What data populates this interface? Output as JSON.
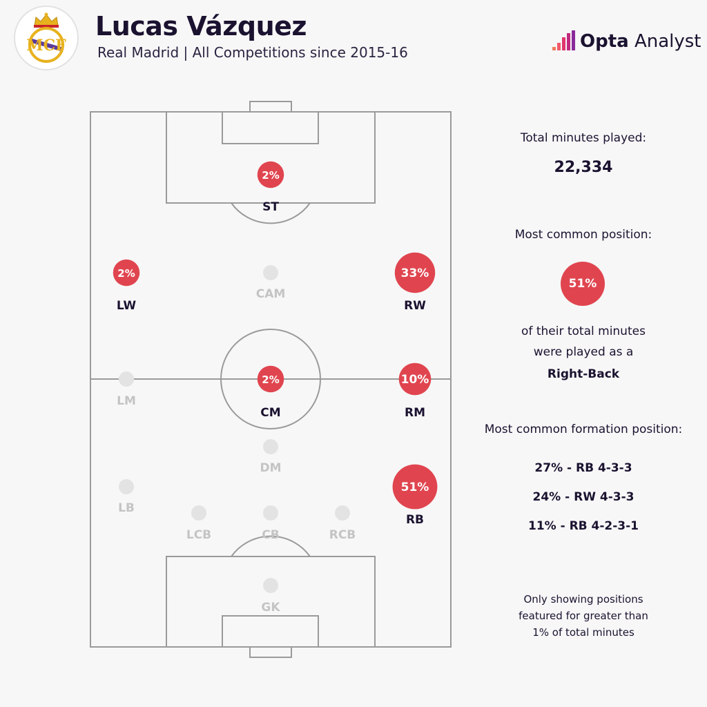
{
  "header": {
    "title": "Lucas Vázquez",
    "subtitle": "Real Madrid | All Competitions since 2015-16",
    "brand_bold": "Opta",
    "brand_light": " Analyst"
  },
  "positions": [
    {
      "id": "st",
      "label": "ST",
      "pct": "2%",
      "value": 2,
      "active": true
    },
    {
      "id": "lw",
      "label": "LW",
      "pct": "2%",
      "value": 2,
      "active": true
    },
    {
      "id": "cam",
      "label": "CAM",
      "pct": "",
      "value": 0,
      "active": false
    },
    {
      "id": "rw",
      "label": "RW",
      "pct": "33%",
      "value": 33,
      "active": true
    },
    {
      "id": "lm",
      "label": "LM",
      "pct": "",
      "value": 0,
      "active": false
    },
    {
      "id": "cm",
      "label": "CM",
      "pct": "2%",
      "value": 2,
      "active": true
    },
    {
      "id": "rm",
      "label": "RM",
      "pct": "10%",
      "value": 10,
      "active": true
    },
    {
      "id": "dm",
      "label": "DM",
      "pct": "",
      "value": 0,
      "active": false
    },
    {
      "id": "lb",
      "label": "LB",
      "pct": "",
      "value": 0,
      "active": false
    },
    {
      "id": "rb",
      "label": "RB",
      "pct": "51%",
      "value": 51,
      "active": true
    },
    {
      "id": "lcb",
      "label": "LCB",
      "pct": "",
      "value": 0,
      "active": false
    },
    {
      "id": "cb",
      "label": "CB",
      "pct": "",
      "value": 0,
      "active": false
    },
    {
      "id": "rcb",
      "label": "RCB",
      "pct": "",
      "value": 0,
      "active": false
    },
    {
      "id": "gk",
      "label": "GK",
      "pct": "",
      "value": 0,
      "active": false
    }
  ],
  "panel": {
    "minutes_label": "Total minutes played:",
    "minutes_value": "22,334",
    "common_label": "Most common position:",
    "common_pct": "51%",
    "common_line1": "of their total minutes",
    "common_line2": "were played as a",
    "common_position": "Right-Back",
    "formation_label": "Most common formation position:",
    "formations": [
      "27% - RB 4-3-3",
      "24% - RW 4-3-3",
      "11% - RB 4-2-3-1"
    ],
    "note_line1": "Only showing positions",
    "note_line2": "featured for greater than",
    "note_line3": "1% of total minutes"
  },
  "colors": {
    "accent": "#e0454f",
    "inactive": "#e3e3e3",
    "text": "#1b1230",
    "lines": "#9a9a9a"
  }
}
